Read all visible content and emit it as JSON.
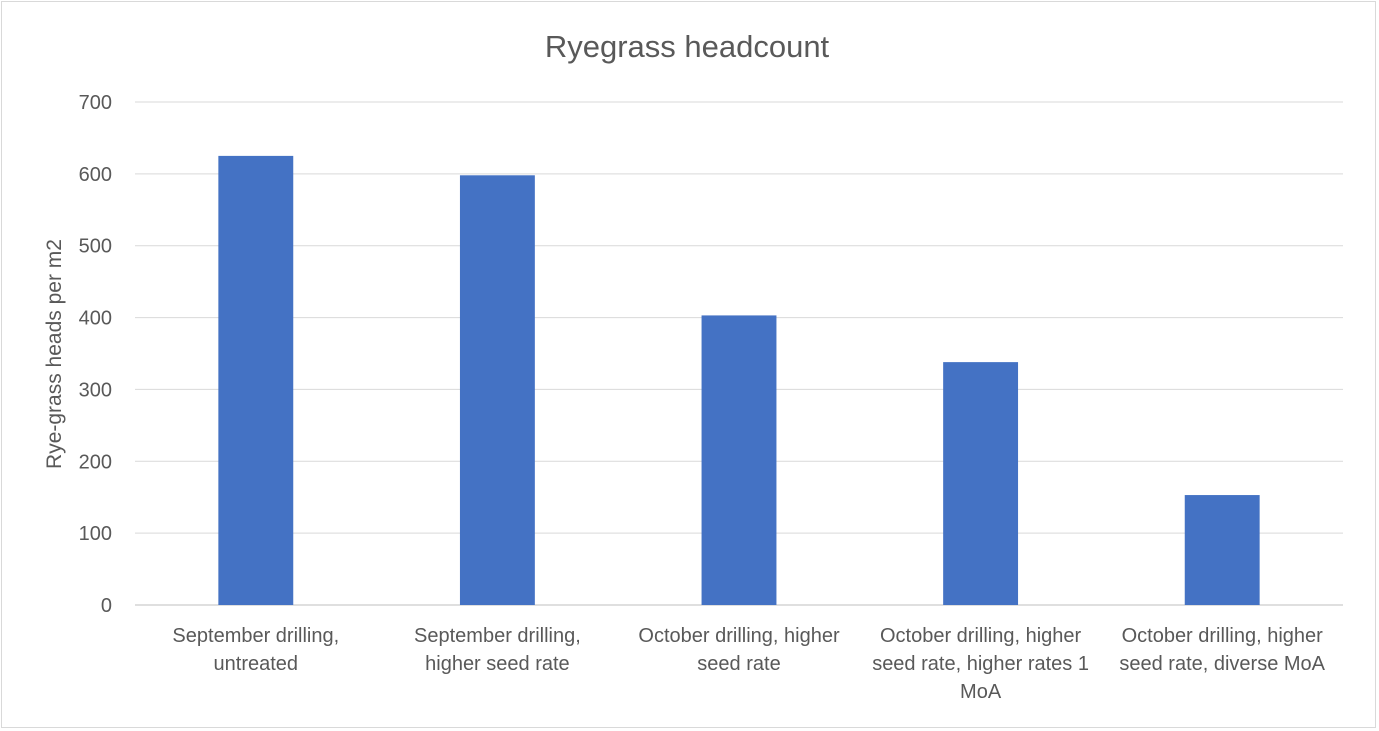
{
  "chart_data": {
    "type": "bar",
    "title": "Ryegrass headcount",
    "xlabel": "",
    "ylabel": "Rye-grass heads per m2",
    "ylim": [
      0,
      700
    ],
    "yticks": [
      0,
      100,
      200,
      300,
      400,
      500,
      600,
      700
    ],
    "grid": true,
    "legend": "none",
    "categories": [
      [
        "September drilling,",
        "untreated"
      ],
      [
        "September drilling,",
        "higher seed rate"
      ],
      [
        "October drilling, higher",
        "seed rate"
      ],
      [
        "October drilling, higher",
        "seed rate, higher rates 1",
        "MoA"
      ],
      [
        "October drilling, higher",
        "seed rate, diverse MoA"
      ]
    ],
    "values": [
      625,
      598,
      403,
      338,
      153
    ],
    "colors": {
      "bar": "#4472C4",
      "grid": "#d9d9d9",
      "text": "#595959"
    }
  }
}
